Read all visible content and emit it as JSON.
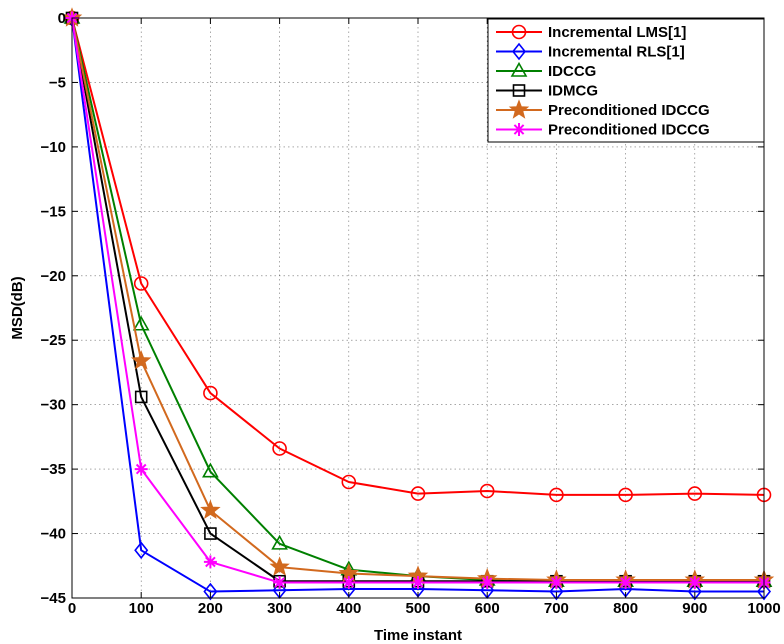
{
  "chart_data": {
    "type": "line",
    "xlabel": "Time instant",
    "ylabel": "MSD(dB)",
    "title": "",
    "xlim": [
      0,
      1000
    ],
    "ylim": [
      -45,
      0
    ],
    "xticks": [
      0,
      100,
      200,
      300,
      400,
      500,
      600,
      700,
      800,
      900,
      1000
    ],
    "yticks": [
      0,
      -5,
      -10,
      -15,
      -20,
      -25,
      -30,
      -35,
      -40,
      -45
    ],
    "grid": true,
    "legend_position": "top-right",
    "x": [
      0,
      100,
      200,
      300,
      400,
      500,
      600,
      700,
      800,
      900,
      1000
    ],
    "series": [
      {
        "name": "Incremental LMS[1]",
        "color": "#ff0000",
        "marker": "circle",
        "values": [
          0,
          -20.6,
          -29.1,
          -33.4,
          -36.0,
          -36.9,
          -36.7,
          -37.0,
          -37.0,
          -36.9,
          -37.0
        ]
      },
      {
        "name": "Incremental RLS[1]",
        "color": "#0000ff",
        "marker": "diamond",
        "values": [
          0,
          -41.3,
          -44.5,
          -44.4,
          -44.3,
          -44.3,
          -44.4,
          -44.5,
          -44.3,
          -44.5,
          -44.5
        ]
      },
      {
        "name": "IDCCG",
        "color": "#008000",
        "marker": "triangle",
        "values": [
          0,
          -23.8,
          -35.2,
          -40.8,
          -42.8,
          -43.3,
          -43.6,
          -43.7,
          -43.7,
          -43.7,
          -43.7
        ]
      },
      {
        "name": "IDMCG",
        "color": "#000000",
        "marker": "square",
        "values": [
          0,
          -29.4,
          -40.0,
          -43.7,
          -43.7,
          -43.7,
          -43.7,
          -43.7,
          -43.7,
          -43.7,
          -43.7
        ]
      },
      {
        "name": "Preconditioned IDCCG",
        "color": "#d2691e",
        "marker": "star",
        "values": [
          0,
          -26.6,
          -38.2,
          -42.6,
          -43.1,
          -43.3,
          -43.5,
          -43.6,
          -43.6,
          -43.6,
          -43.6
        ]
      },
      {
        "name": "Preconditioned IDCCG",
        "color": "#ff00ff",
        "marker": "asterisk",
        "values": [
          0,
          -35.0,
          -42.2,
          -43.8,
          -43.8,
          -43.8,
          -43.8,
          -43.8,
          -43.8,
          -43.8,
          -43.8
        ]
      }
    ]
  }
}
